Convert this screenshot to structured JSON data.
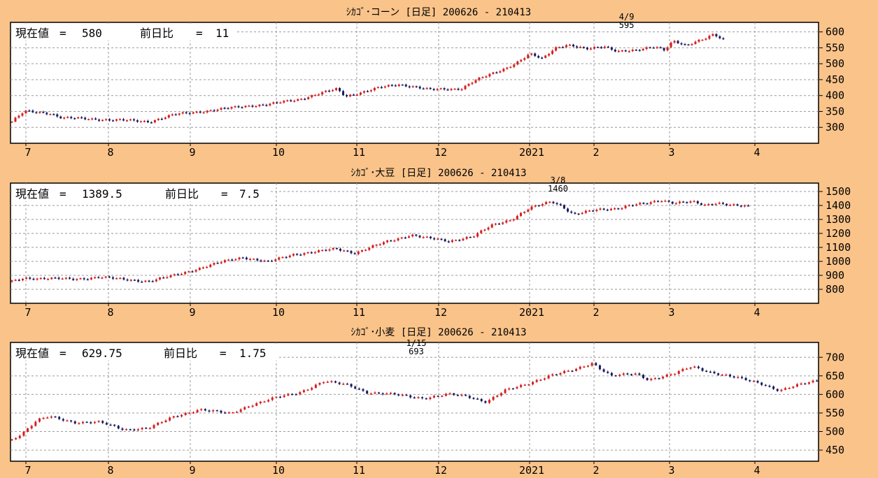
{
  "background_color": "#f9c38a",
  "candle_colors": {
    "up": "#d42020",
    "down": "#1a1a60"
  },
  "x_axis_labels": [
    "7",
    "8",
    "9",
    "10",
    "11",
    "12",
    "2021",
    "2",
    "3",
    "4"
  ],
  "chart_data": [
    {
      "type": "candlestick",
      "title": "ｼｶｺﾞ･コーン [日足] 200626 - 210413",
      "info": {
        "current_label": "現在値",
        "current": "580",
        "change_label": "前日比",
        "change": "11"
      },
      "ylim": [
        250,
        630
      ],
      "yticks": [
        "600",
        "550",
        "500",
        "450",
        "400",
        "350",
        "300"
      ],
      "peak": {
        "date": "4/9",
        "value": "595",
        "pos": 0.985
      },
      "anchors": [
        [
          0,
          318
        ],
        [
          0.02,
          350
        ],
        [
          0.06,
          345
        ],
        [
          0.08,
          330
        ],
        [
          0.18,
          322
        ],
        [
          0.22,
          318
        ],
        [
          0.26,
          340
        ],
        [
          0.33,
          356
        ],
        [
          0.38,
          368
        ],
        [
          0.41,
          372
        ],
        [
          0.46,
          388
        ],
        [
          0.49,
          405
        ],
        [
          0.52,
          420
        ],
        [
          0.535,
          398
        ],
        [
          0.59,
          425
        ],
        [
          0.62,
          435
        ],
        [
          0.645,
          428
        ],
        [
          0.67,
          418
        ],
        [
          0.72,
          422
        ],
        [
          0.74,
          445
        ],
        [
          0.79,
          485
        ],
        [
          0.81,
          505
        ],
        [
          0.83,
          530
        ],
        [
          0.85,
          515
        ],
        [
          0.87,
          550
        ],
        [
          0.89,
          560
        ],
        [
          0.92,
          545
        ],
        [
          0.95,
          555
        ],
        [
          0.97,
          540
        ],
        [
          1.0,
          540
        ],
        [
          1.03,
          555
        ],
        [
          1.045,
          545
        ],
        [
          1.06,
          572
        ],
        [
          1.08,
          555
        ],
        [
          1.11,
          580
        ],
        [
          1.125,
          595
        ],
        [
          1.14,
          575
        ]
      ]
    },
    {
      "type": "candlestick",
      "title": "ｼｶｺﾞ･大豆 [日足] 200626 - 210413",
      "info": {
        "current_label": "現在値",
        "current": "1389.5",
        "change_label": "前日比",
        "change": "7.5"
      },
      "ylim": [
        700,
        1560
      ],
      "yticks": [
        "1500",
        "1400",
        "1300",
        "1200",
        "1100",
        "1000",
        "900",
        "800"
      ],
      "peak": {
        "date": "3/8",
        "value": "1460",
        "pos": 0.875
      },
      "anchors": [
        [
          0,
          855
        ],
        [
          0.02,
          880
        ],
        [
          0.06,
          878
        ],
        [
          0.1,
          872
        ],
        [
          0.14,
          888
        ],
        [
          0.18,
          870
        ],
        [
          0.22,
          858
        ],
        [
          0.26,
          900
        ],
        [
          0.3,
          950
        ],
        [
          0.34,
          1000
        ],
        [
          0.37,
          1030
        ],
        [
          0.41,
          995
        ],
        [
          0.45,
          1050
        ],
        [
          0.49,
          1070
        ],
        [
          0.52,
          1090
        ],
        [
          0.55,
          1060
        ],
        [
          0.6,
          1140
        ],
        [
          0.64,
          1190
        ],
        [
          0.66,
          1170
        ],
        [
          0.7,
          1145
        ],
        [
          0.74,
          1180
        ],
        [
          0.77,
          1260
        ],
        [
          0.8,
          1300
        ],
        [
          0.83,
          1380
        ],
        [
          0.865,
          1430
        ],
        [
          0.88,
          1400
        ],
        [
          0.9,
          1335
        ],
        [
          0.94,
          1370
        ],
        [
          0.97,
          1380
        ],
        [
          0.99,
          1400
        ],
        [
          1.02,
          1415
        ],
        [
          1.04,
          1440
        ],
        [
          1.06,
          1420
        ],
        [
          1.09,
          1425
        ],
        [
          1.11,
          1400
        ],
        [
          1.13,
          1420
        ],
        [
          1.16,
          1400
        ],
        [
          1.18,
          1390
        ]
      ]
    },
    {
      "type": "candlestick",
      "title": "ｼｶｺﾞ･小麦 [日足] 200626 - 210413",
      "info": {
        "current_label": "現在値",
        "current": "629.75",
        "change_label": "前日比",
        "change": "1.75"
      },
      "ylim": [
        420,
        740
      ],
      "yticks": [
        "700",
        "650",
        "600",
        "550",
        "500",
        "450"
      ],
      "peak": {
        "date": "1/15",
        "value": "693",
        "pos": 0.648
      },
      "anchors": [
        [
          0,
          478
        ],
        [
          0.02,
          500
        ],
        [
          0.04,
          530
        ],
        [
          0.06,
          540
        ],
        [
          0.1,
          525
        ],
        [
          0.14,
          525
        ],
        [
          0.18,
          505
        ],
        [
          0.22,
          510
        ],
        [
          0.26,
          540
        ],
        [
          0.3,
          560
        ],
        [
          0.35,
          548
        ],
        [
          0.38,
          570
        ],
        [
          0.42,
          590
        ],
        [
          0.46,
          605
        ],
        [
          0.5,
          635
        ],
        [
          0.54,
          625
        ],
        [
          0.57,
          605
        ],
        [
          0.61,
          600
        ],
        [
          0.66,
          590
        ],
        [
          0.7,
          600
        ],
        [
          0.73,
          595
        ],
        [
          0.76,
          580
        ],
        [
          0.79,
          610
        ],
        [
          0.82,
          625
        ],
        [
          0.86,
          650
        ],
        [
          0.9,
          665
        ],
        [
          0.93,
          685
        ],
        [
          0.96,
          650
        ],
        [
          1.0,
          655
        ],
        [
          1.02,
          640
        ],
        [
          1.06,
          655
        ],
        [
          1.09,
          675
        ],
        [
          1.12,
          660
        ],
        [
          1.16,
          645
        ],
        [
          1.2,
          630
        ],
        [
          1.23,
          610
        ],
        [
          1.26,
          625
        ],
        [
          1.29,
          638
        ]
      ]
    }
  ]
}
